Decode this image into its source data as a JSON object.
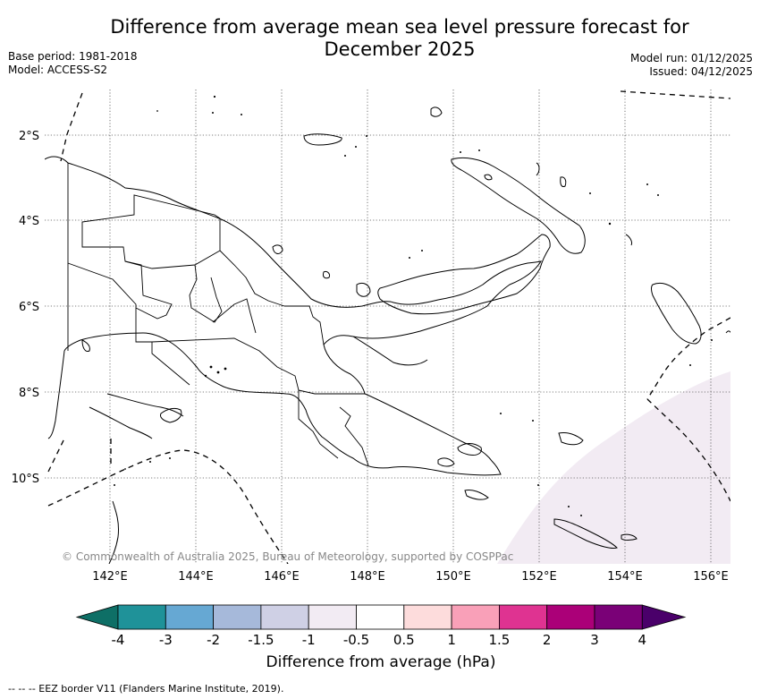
{
  "header": {
    "title_line1": "Difference from average mean sea level pressure forecast for",
    "title_line2": "December 2025",
    "base_period": "Base period: 1981-2018",
    "model": "Model: ACCESS-S2",
    "model_run": "Model run: 01/12/2025",
    "issued": "Issued: 04/12/2025"
  },
  "map": {
    "lon_labels": [
      "142°E",
      "144°E",
      "146°E",
      "148°E",
      "150°E",
      "152°E",
      "154°E",
      "156°E"
    ],
    "lat_labels": [
      "2°S",
      "4°S",
      "6°S",
      "8°S",
      "10°S"
    ],
    "copyright": "© Commonwealth of Australia 2025, Bureau of Meteorology, supported by COSPPac",
    "anomaly_fill_color": "#f2ebf3",
    "anomaly_category": "-1 to -0.5 hPa",
    "coast_color": "#000000",
    "grid_style": "dotted"
  },
  "colorbar": {
    "title": "Difference from average (hPa)",
    "tick_labels": [
      "-4",
      "-3",
      "-2",
      "-1.5",
      "-1",
      "-0.5",
      "0.5",
      "1",
      "1.5",
      "2",
      "3",
      "4"
    ],
    "colors": [
      "#0e6f66",
      "#1f9299",
      "#66a8d3",
      "#a6b9da",
      "#cfd0e5",
      "#f2ebf3",
      "#ffffff",
      "#fddcdc",
      "#f9a0b8",
      "#df3391",
      "#ab0078",
      "#7a0177",
      "#4a006a"
    ]
  },
  "footnote": "--  --  -- EEZ border V11 (Flanders Marine Institute, 2019)."
}
